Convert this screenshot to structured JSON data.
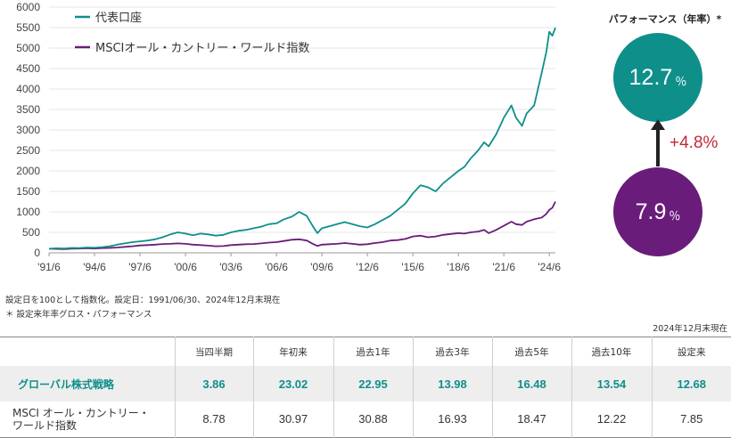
{
  "chart_data": {
    "type": "line",
    "x_ticks": [
      "'91/6",
      "'94/6",
      "'97/6",
      "'00/6",
      "'03/6",
      "'06/6",
      "'09/6",
      "'12/6",
      "'15/6",
      "'18/6",
      "'21/6",
      "'24/6"
    ],
    "y_ticks": [
      0,
      500,
      1000,
      1500,
      2000,
      2500,
      3000,
      3500,
      4000,
      4500,
      5000,
      5500,
      6000
    ],
    "ylim": [
      0,
      6000
    ],
    "x_range": [
      1991.5,
      2024.9
    ],
    "legend_position": "top-left",
    "series": [
      {
        "name": "代表口座",
        "color": "#0e8f8a",
        "x": [
          1991.5,
          1992.0,
          1992.5,
          1993.0,
          1993.5,
          1994.0,
          1994.5,
          1995.0,
          1995.5,
          1996.0,
          1996.5,
          1997.0,
          1997.5,
          1998.0,
          1998.5,
          1999.0,
          1999.5,
          2000.0,
          2000.5,
          2001.0,
          2001.5,
          2002.0,
          2002.5,
          2003.0,
          2003.5,
          2004.0,
          2004.5,
          2005.0,
          2005.5,
          2006.0,
          2006.5,
          2007.0,
          2007.5,
          2008.0,
          2008.5,
          2008.9,
          2009.2,
          2009.5,
          2010.0,
          2010.5,
          2011.0,
          2011.5,
          2012.0,
          2012.5,
          2013.0,
          2013.5,
          2014.0,
          2014.5,
          2015.0,
          2015.5,
          2016.0,
          2016.5,
          2017.0,
          2017.5,
          2018.0,
          2018.5,
          2018.9,
          2019.3,
          2019.8,
          2020.2,
          2020.5,
          2021.0,
          2021.5,
          2022.0,
          2022.3,
          2022.7,
          2023.0,
          2023.5,
          2024.0,
          2024.3,
          2024.5,
          2024.7,
          2024.9
        ],
        "values": [
          100,
          110,
          105,
          120,
          115,
          130,
          125,
          140,
          160,
          200,
          230,
          260,
          280,
          300,
          330,
          380,
          450,
          500,
          470,
          430,
          470,
          450,
          420,
          440,
          500,
          540,
          560,
          600,
          640,
          700,
          720,
          820,
          880,
          1000,
          900,
          650,
          480,
          600,
          650,
          700,
          750,
          700,
          650,
          620,
          700,
          800,
          900,
          1050,
          1200,
          1450,
          1650,
          1600,
          1500,
          1700,
          1850,
          2000,
          2100,
          2300,
          2500,
          2700,
          2600,
          2900,
          3300,
          3600,
          3300,
          3100,
          3400,
          3600,
          4400,
          4900,
          5400,
          5300,
          5500
        ]
      },
      {
        "name": "MSCIオール・カントリー・ワールド指数",
        "color": "#6a1c7a",
        "x": [
          1991.5,
          1992.0,
          1992.5,
          1993.0,
          1993.5,
          1994.0,
          1994.5,
          1995.0,
          1995.5,
          1996.0,
          1996.5,
          1997.0,
          1997.5,
          1998.0,
          1998.5,
          1999.0,
          1999.5,
          2000.0,
          2000.5,
          2001.0,
          2001.5,
          2002.0,
          2002.5,
          2003.0,
          2003.5,
          2004.0,
          2004.5,
          2005.0,
          2005.5,
          2006.0,
          2006.5,
          2007.0,
          2007.5,
          2008.0,
          2008.5,
          2008.9,
          2009.2,
          2009.5,
          2010.0,
          2010.5,
          2011.0,
          2011.5,
          2012.0,
          2012.5,
          2013.0,
          2013.5,
          2014.0,
          2014.5,
          2015.0,
          2015.5,
          2016.0,
          2016.5,
          2017.0,
          2017.5,
          2018.0,
          2018.5,
          2018.9,
          2019.3,
          2019.8,
          2020.2,
          2020.5,
          2021.0,
          2021.5,
          2022.0,
          2022.3,
          2022.7,
          2023.0,
          2023.5,
          2024.0,
          2024.3,
          2024.5,
          2024.7,
          2024.9
        ],
        "values": [
          100,
          95,
          90,
          100,
          105,
          110,
          105,
          115,
          120,
          130,
          145,
          160,
          180,
          190,
          200,
          215,
          220,
          230,
          220,
          200,
          190,
          175,
          160,
          165,
          190,
          200,
          210,
          215,
          230,
          250,
          260,
          290,
          320,
          330,
          300,
          220,
          170,
          200,
          210,
          220,
          240,
          220,
          200,
          210,
          240,
          260,
          300,
          310,
          340,
          400,
          420,
          380,
          400,
          440,
          460,
          480,
          470,
          500,
          520,
          560,
          480,
          560,
          660,
          760,
          700,
          680,
          760,
          820,
          860,
          950,
          1050,
          1100,
          1250
        ]
      }
    ]
  },
  "performance": {
    "title": "パフォーマンス（年率）*",
    "fund_value": "12.7",
    "fund_unit": "％",
    "index_value": "7.9",
    "index_unit": "％",
    "diff": "+4.8%",
    "fund_color": "#0e8f8a",
    "index_color": "#6a1c7a",
    "diff_color": "#c22a39"
  },
  "notes": {
    "line1": "設定日を100として指数化。設定日：1991/06/30、2024年12月末現在",
    "line2": "＊ 設定来年率グロス・パフォーマンス",
    "as_of": "2024年12月末現在"
  },
  "table": {
    "headers": [
      "",
      "当四半期",
      "年初来",
      "過去1年",
      "過去3年",
      "過去5年",
      "過去10年",
      "設定来"
    ],
    "rows": [
      {
        "label": "グローバル株式戦略",
        "values": [
          "3.86",
          "23.02",
          "22.95",
          "13.98",
          "16.48",
          "13.54",
          "12.68"
        ]
      },
      {
        "label_line1": "MSCI オール・カントリー・",
        "label_line2": "ワールド指数",
        "values": [
          "8.78",
          "30.97",
          "30.88",
          "16.93",
          "18.47",
          "12.22",
          "7.85"
        ]
      }
    ]
  }
}
